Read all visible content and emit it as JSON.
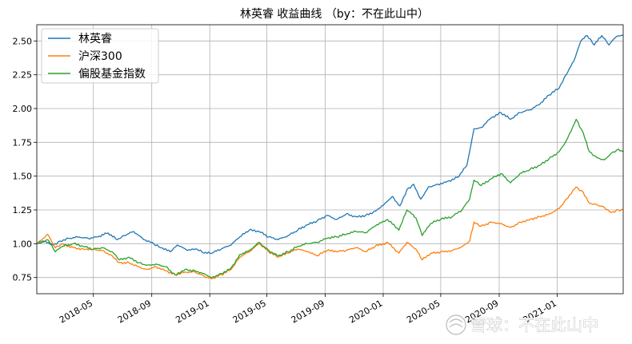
{
  "chart_data": {
    "type": "line",
    "title": "林英睿 收益曲线 （by：不在此山中）",
    "xlabel": "",
    "ylabel": "",
    "x_start": "2018-01-02",
    "x_end": "2021-05-20",
    "ylim": [
      0.63,
      2.62
    ],
    "grid": true,
    "legend_position": "top-left",
    "y_ticks": [
      0.75,
      1.0,
      1.25,
      1.5,
      1.75,
      2.0,
      2.25,
      2.5
    ],
    "y_tick_labels": [
      "0.75",
      "1.00",
      "1.25",
      "1.50",
      "1.75",
      "2.00",
      "2.25",
      "2.50"
    ],
    "x_ticks": [
      "2018-05-01",
      "2018-09-01",
      "2019-01-01",
      "2019-05-01",
      "2019-09-01",
      "2020-01-01",
      "2020-05-01",
      "2020-09-01",
      "2021-01-01"
    ],
    "x_tick_labels": [
      "2018-05",
      "2018-09",
      "2019-01",
      "2019-05",
      "2019-09",
      "2020-01",
      "2020-05",
      "2020-09",
      "2021-01"
    ],
    "series": [
      {
        "name": "林英睿",
        "color": "#1f77b4",
        "points": [
          [
            "2018-01-02",
            1.0
          ],
          [
            "2018-01-20",
            1.02
          ],
          [
            "2018-02-05",
            0.99
          ],
          [
            "2018-02-20",
            1.02
          ],
          [
            "2018-03-10",
            1.04
          ],
          [
            "2018-04-01",
            1.05
          ],
          [
            "2018-04-20",
            1.04
          ],
          [
            "2018-05-10",
            1.05
          ],
          [
            "2018-06-01",
            1.08
          ],
          [
            "2018-06-20",
            1.03
          ],
          [
            "2018-07-05",
            1.06
          ],
          [
            "2018-07-25",
            1.09
          ],
          [
            "2018-08-15",
            1.03
          ],
          [
            "2018-09-05",
            1.0
          ],
          [
            "2018-09-20",
            0.97
          ],
          [
            "2018-10-10",
            0.94
          ],
          [
            "2018-10-25",
            0.99
          ],
          [
            "2018-11-15",
            0.95
          ],
          [
            "2018-12-05",
            0.96
          ],
          [
            "2018-12-20",
            0.93
          ],
          [
            "2019-01-05",
            0.93
          ],
          [
            "2019-01-25",
            0.96
          ],
          [
            "2019-02-15",
            0.99
          ],
          [
            "2019-03-05",
            1.05
          ],
          [
            "2019-03-25",
            1.1
          ],
          [
            "2019-04-15",
            1.09
          ],
          [
            "2019-05-05",
            1.05
          ],
          [
            "2019-05-25",
            1.03
          ],
          [
            "2019-06-15",
            1.06
          ],
          [
            "2019-07-05",
            1.1
          ],
          [
            "2019-07-25",
            1.14
          ],
          [
            "2019-08-15",
            1.17
          ],
          [
            "2019-09-05",
            1.21
          ],
          [
            "2019-09-25",
            1.18
          ],
          [
            "2019-10-15",
            1.22
          ],
          [
            "2019-11-05",
            1.2
          ],
          [
            "2019-11-25",
            1.21
          ],
          [
            "2019-12-15",
            1.24
          ],
          [
            "2020-01-05",
            1.3
          ],
          [
            "2020-01-20",
            1.35
          ],
          [
            "2020-02-05",
            1.28
          ],
          [
            "2020-02-20",
            1.4
          ],
          [
            "2020-03-05",
            1.44
          ],
          [
            "2020-03-20",
            1.33
          ],
          [
            "2020-04-05",
            1.42
          ],
          [
            "2020-04-25",
            1.44
          ],
          [
            "2020-05-15",
            1.46
          ],
          [
            "2020-06-05",
            1.49
          ],
          [
            "2020-06-25",
            1.58
          ],
          [
            "2020-07-10",
            1.85
          ],
          [
            "2020-07-25",
            1.86
          ],
          [
            "2020-08-15",
            1.93
          ],
          [
            "2020-09-05",
            1.97
          ],
          [
            "2020-09-25",
            1.92
          ],
          [
            "2020-10-15",
            1.97
          ],
          [
            "2020-11-05",
            1.99
          ],
          [
            "2020-11-25",
            2.03
          ],
          [
            "2020-12-15",
            2.1
          ],
          [
            "2021-01-05",
            2.15
          ],
          [
            "2021-01-20",
            2.25
          ],
          [
            "2021-02-05",
            2.35
          ],
          [
            "2021-02-20",
            2.5
          ],
          [
            "2021-03-05",
            2.54
          ],
          [
            "2021-03-20",
            2.47
          ],
          [
            "2021-04-05",
            2.54
          ],
          [
            "2021-04-20",
            2.47
          ],
          [
            "2021-05-05",
            2.53
          ],
          [
            "2021-05-20",
            2.54
          ]
        ]
      },
      {
        "name": "沪深300",
        "color": "#ff7f0e",
        "points": [
          [
            "2018-01-02",
            1.0
          ],
          [
            "2018-01-25",
            1.07
          ],
          [
            "2018-02-10",
            0.97
          ],
          [
            "2018-02-25",
            1.0
          ],
          [
            "2018-03-20",
            0.97
          ],
          [
            "2018-04-10",
            0.96
          ],
          [
            "2018-05-01",
            0.96
          ],
          [
            "2018-05-20",
            0.95
          ],
          [
            "2018-06-10",
            0.91
          ],
          [
            "2018-06-25",
            0.86
          ],
          [
            "2018-07-15",
            0.86
          ],
          [
            "2018-08-05",
            0.83
          ],
          [
            "2018-08-20",
            0.81
          ],
          [
            "2018-09-10",
            0.83
          ],
          [
            "2018-10-01",
            0.8
          ],
          [
            "2018-10-20",
            0.77
          ],
          [
            "2018-11-10",
            0.79
          ],
          [
            "2018-12-01",
            0.79
          ],
          [
            "2018-12-20",
            0.76
          ],
          [
            "2019-01-05",
            0.74
          ],
          [
            "2019-01-25",
            0.77
          ],
          [
            "2019-02-15",
            0.81
          ],
          [
            "2019-03-05",
            0.9
          ],
          [
            "2019-03-25",
            0.94
          ],
          [
            "2019-04-15",
            1.0
          ],
          [
            "2019-05-05",
            0.94
          ],
          [
            "2019-05-25",
            0.9
          ],
          [
            "2019-06-15",
            0.93
          ],
          [
            "2019-07-05",
            0.96
          ],
          [
            "2019-07-25",
            0.94
          ],
          [
            "2019-08-15",
            0.91
          ],
          [
            "2019-09-05",
            0.95
          ],
          [
            "2019-09-25",
            0.94
          ],
          [
            "2019-10-15",
            0.95
          ],
          [
            "2019-11-05",
            0.97
          ],
          [
            "2019-11-25",
            0.94
          ],
          [
            "2019-12-15",
            0.98
          ],
          [
            "2020-01-10",
            1.01
          ],
          [
            "2020-02-03",
            0.93
          ],
          [
            "2020-02-20",
            1.01
          ],
          [
            "2020-03-10",
            0.96
          ],
          [
            "2020-03-23",
            0.88
          ],
          [
            "2020-04-10",
            0.93
          ],
          [
            "2020-05-01",
            0.94
          ],
          [
            "2020-05-25",
            0.95
          ],
          [
            "2020-06-15",
            0.98
          ],
          [
            "2020-07-01",
            1.02
          ],
          [
            "2020-07-10",
            1.16
          ],
          [
            "2020-07-25",
            1.13
          ],
          [
            "2020-08-15",
            1.16
          ],
          [
            "2020-09-05",
            1.15
          ],
          [
            "2020-09-25",
            1.12
          ],
          [
            "2020-10-15",
            1.16
          ],
          [
            "2020-11-05",
            1.18
          ],
          [
            "2020-11-25",
            1.2
          ],
          [
            "2020-12-15",
            1.22
          ],
          [
            "2021-01-05",
            1.26
          ],
          [
            "2021-01-20",
            1.33
          ],
          [
            "2021-02-10",
            1.42
          ],
          [
            "2021-02-25",
            1.38
          ],
          [
            "2021-03-10",
            1.3
          ],
          [
            "2021-03-25",
            1.29
          ],
          [
            "2021-04-10",
            1.27
          ],
          [
            "2021-04-25",
            1.23
          ],
          [
            "2021-05-10",
            1.25
          ],
          [
            "2021-05-20",
            1.25
          ]
        ]
      },
      {
        "name": "偏股基金指数",
        "color": "#2ca02c",
        "points": [
          [
            "2018-01-02",
            1.0
          ],
          [
            "2018-01-25",
            1.03
          ],
          [
            "2018-02-10",
            0.94
          ],
          [
            "2018-02-25",
            0.98
          ],
          [
            "2018-03-20",
            1.0
          ],
          [
            "2018-04-10",
            0.98
          ],
          [
            "2018-05-01",
            0.96
          ],
          [
            "2018-05-20",
            0.97
          ],
          [
            "2018-06-10",
            0.94
          ],
          [
            "2018-06-25",
            0.88
          ],
          [
            "2018-07-15",
            0.9
          ],
          [
            "2018-08-05",
            0.86
          ],
          [
            "2018-08-20",
            0.84
          ],
          [
            "2018-09-10",
            0.85
          ],
          [
            "2018-10-01",
            0.83
          ],
          [
            "2018-10-20",
            0.77
          ],
          [
            "2018-11-10",
            0.81
          ],
          [
            "2018-12-01",
            0.8
          ],
          [
            "2018-12-20",
            0.78
          ],
          [
            "2019-01-05",
            0.75
          ],
          [
            "2019-01-25",
            0.78
          ],
          [
            "2019-02-15",
            0.82
          ],
          [
            "2019-03-05",
            0.92
          ],
          [
            "2019-03-25",
            0.95
          ],
          [
            "2019-04-15",
            1.01
          ],
          [
            "2019-05-05",
            0.95
          ],
          [
            "2019-05-25",
            0.91
          ],
          [
            "2019-06-15",
            0.94
          ],
          [
            "2019-07-05",
            0.98
          ],
          [
            "2019-07-25",
            1.0
          ],
          [
            "2019-08-15",
            1.01
          ],
          [
            "2019-09-05",
            1.04
          ],
          [
            "2019-09-25",
            1.05
          ],
          [
            "2019-10-15",
            1.07
          ],
          [
            "2019-11-05",
            1.09
          ],
          [
            "2019-11-25",
            1.08
          ],
          [
            "2019-12-15",
            1.13
          ],
          [
            "2020-01-10",
            1.18
          ],
          [
            "2020-02-03",
            1.1
          ],
          [
            "2020-02-20",
            1.25
          ],
          [
            "2020-03-10",
            1.19
          ],
          [
            "2020-03-23",
            1.06
          ],
          [
            "2020-04-10",
            1.15
          ],
          [
            "2020-05-01",
            1.18
          ],
          [
            "2020-05-25",
            1.2
          ],
          [
            "2020-06-15",
            1.25
          ],
          [
            "2020-07-01",
            1.33
          ],
          [
            "2020-07-10",
            1.47
          ],
          [
            "2020-07-25",
            1.43
          ],
          [
            "2020-08-15",
            1.48
          ],
          [
            "2020-09-05",
            1.52
          ],
          [
            "2020-09-25",
            1.45
          ],
          [
            "2020-10-15",
            1.52
          ],
          [
            "2020-11-05",
            1.55
          ],
          [
            "2020-11-25",
            1.58
          ],
          [
            "2020-12-15",
            1.63
          ],
          [
            "2021-01-05",
            1.68
          ],
          [
            "2021-01-20",
            1.76
          ],
          [
            "2021-02-10",
            1.92
          ],
          [
            "2021-02-25",
            1.82
          ],
          [
            "2021-03-10",
            1.68
          ],
          [
            "2021-03-25",
            1.64
          ],
          [
            "2021-04-10",
            1.62
          ],
          [
            "2021-04-25",
            1.67
          ],
          [
            "2021-05-10",
            1.7
          ],
          [
            "2021-05-20",
            1.68
          ]
        ]
      }
    ]
  },
  "watermark": {
    "text": "雪球：不在此山中"
  }
}
